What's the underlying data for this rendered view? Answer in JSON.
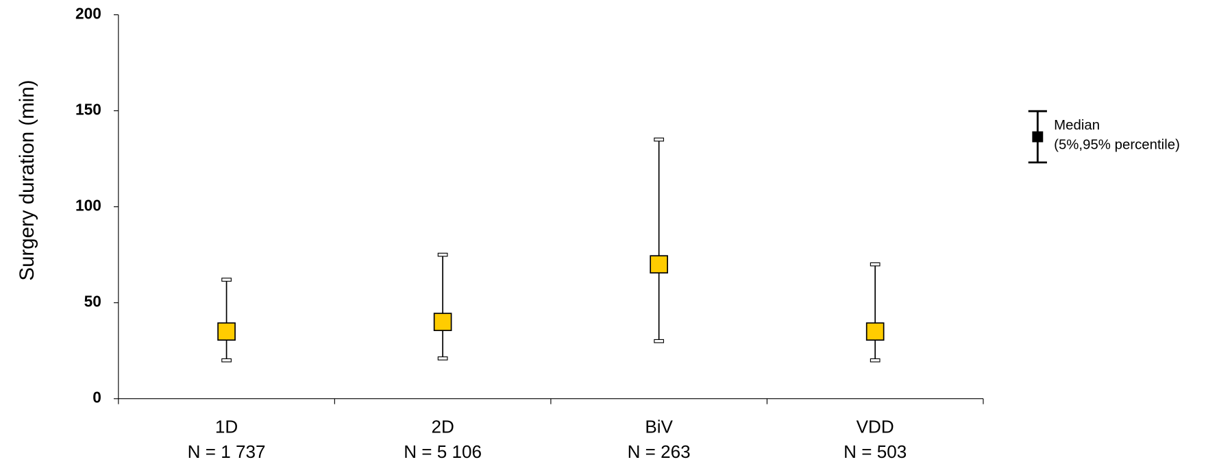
{
  "chart_data": {
    "type": "errorbar",
    "y_axis_label": "Surgery duration (min)",
    "categories": [
      "1D",
      "2D",
      "BiV",
      "VDD"
    ],
    "sample_sizes": [
      "N = 1 737",
      "N = 5 106",
      "N = 263",
      "N = 503"
    ],
    "values": [
      35,
      40,
      70,
      35
    ],
    "lower": [
      20,
      21,
      30,
      20
    ],
    "upper": [
      62,
      75,
      135,
      70
    ],
    "color": "#ffcc00",
    "ylim": [
      0,
      200
    ],
    "yticks": [
      0,
      50,
      100,
      150,
      200
    ],
    "legend": [
      "Median",
      "(5%,95% percentile)"
    ],
    "legend_position": "right"
  }
}
